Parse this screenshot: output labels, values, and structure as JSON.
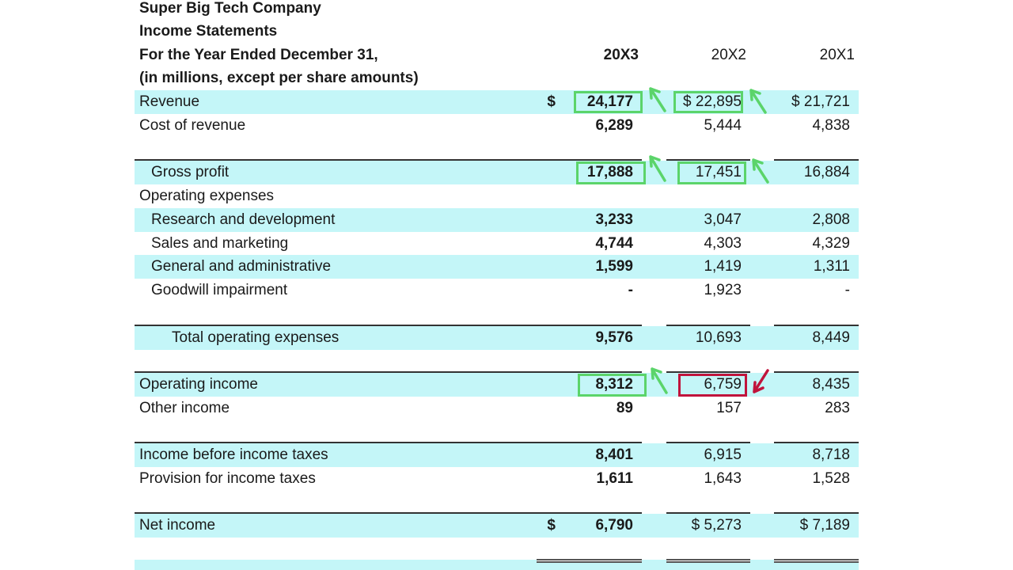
{
  "header": {
    "company": "Super Big Tech Company",
    "title": "Income Statements",
    "period": "For the Year Ended December 31,",
    "units": "(in millions, except per share amounts)",
    "columns": [
      "20X3",
      "20X2",
      "20X1"
    ]
  },
  "rows": [
    {
      "label": "Revenue",
      "indent": 0,
      "band": true,
      "values": [
        "24,177",
        "$ 22,895",
        "$ 21,721"
      ],
      "dollar3": "$"
    },
    {
      "label": "Cost of revenue",
      "indent": 0,
      "band": false,
      "values": [
        "6,289",
        "5,444",
        "4,838"
      ]
    },
    {
      "label": "Gross profit",
      "indent": 1,
      "band": true,
      "rule": true,
      "values": [
        "17,888",
        "17,451",
        "16,884"
      ]
    },
    {
      "label": "Operating expenses",
      "indent": 0,
      "band": false,
      "values": [
        "",
        "",
        ""
      ]
    },
    {
      "label": "Research and development",
      "indent": 1,
      "band": true,
      "values": [
        "3,233",
        "3,047",
        "2,808"
      ]
    },
    {
      "label": "Sales and marketing",
      "indent": 1,
      "band": false,
      "values": [
        "4,744",
        "4,303",
        "4,329"
      ]
    },
    {
      "label": "General and administrative",
      "indent": 1,
      "band": true,
      "values": [
        "1,599",
        "1,419",
        "1,311"
      ]
    },
    {
      "label": "Goodwill impairment",
      "indent": 1,
      "band": false,
      "values": [
        "-",
        "1,923",
        "-"
      ]
    },
    {
      "label": "Total operating expenses",
      "indent": 2,
      "band": true,
      "rule": true,
      "values": [
        "9,576",
        "10,693",
        "8,449"
      ]
    },
    {
      "label": "Operating income",
      "indent": 0,
      "band": true,
      "rule": true,
      "values": [
        "8,312",
        "6,759",
        "8,435"
      ]
    },
    {
      "label": "Other income",
      "indent": 0,
      "band": false,
      "values": [
        "89",
        "157",
        "283"
      ]
    },
    {
      "label": "Income before income taxes",
      "indent": 0,
      "band": true,
      "rule": true,
      "values": [
        "8,401",
        "6,915",
        "8,718"
      ]
    },
    {
      "label": "Provision for income taxes",
      "indent": 0,
      "band": false,
      "values": [
        "1,611",
        "1,643",
        "1,528"
      ]
    },
    {
      "label": "Net income",
      "indent": 0,
      "band": true,
      "rule": true,
      "values": [
        "6,790",
        "$  5,273",
        "$  7,189"
      ],
      "dollar3": "$"
    }
  ],
  "highlights": {
    "green": "#5bd46a",
    "red": "#c0143c"
  }
}
